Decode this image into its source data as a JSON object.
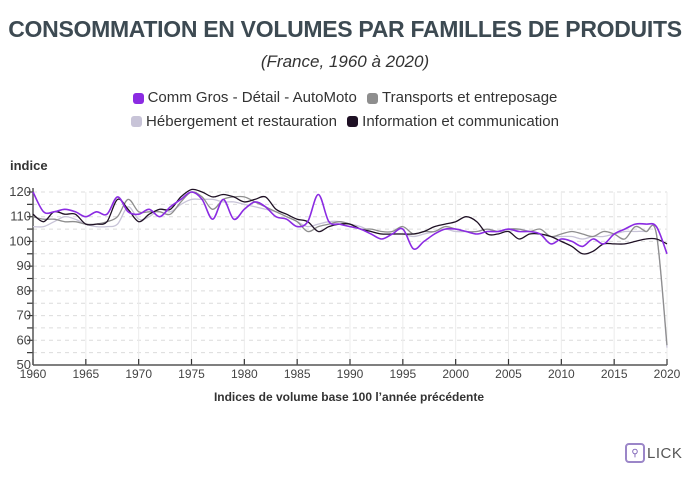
{
  "chart_data": {
    "type": "line",
    "title": "CONSOMMATION EN VOLUMES PAR FAMILLES DE PRODUITS",
    "subtitle": "(France, 1960 à 2020)",
    "ylabel": "indice",
    "xlabel": "Indices de volume base 100 l’année précédente",
    "ylim": [
      50,
      120
    ],
    "xlim": [
      1960,
      2020
    ],
    "yticks": [
      50,
      60,
      70,
      80,
      90,
      100,
      110,
      120
    ],
    "xticks": [
      1960,
      1965,
      1970,
      1975,
      1980,
      1985,
      1990,
      1995,
      2000,
      2005,
      2010,
      2015,
      2020
    ],
    "grid": true,
    "legend_position": "top-center",
    "x": [
      1960,
      1961,
      1962,
      1963,
      1964,
      1965,
      1966,
      1967,
      1968,
      1969,
      1970,
      1971,
      1972,
      1973,
      1974,
      1975,
      1976,
      1977,
      1978,
      1979,
      1980,
      1981,
      1982,
      1983,
      1984,
      1985,
      1986,
      1987,
      1988,
      1989,
      1990,
      1991,
      1992,
      1993,
      1994,
      1995,
      1996,
      1997,
      1998,
      1999,
      2000,
      2001,
      2002,
      2003,
      2004,
      2005,
      2006,
      2007,
      2008,
      2009,
      2010,
      2011,
      2012,
      2013,
      2014,
      2015,
      2016,
      2017,
      2018,
      2019,
      2020
    ],
    "series": [
      {
        "name": "Comm Gros - Détail - AutoMoto",
        "color": "#8b2be2",
        "values": [
          120,
          112,
          112,
          113,
          112,
          110,
          112,
          111,
          118,
          112,
          111,
          113,
          110,
          114,
          117,
          120,
          117,
          109,
          117,
          109,
          113,
          116,
          114,
          110,
          109,
          106,
          108,
          119,
          108,
          107,
          106,
          105,
          103,
          101,
          103,
          105,
          97,
          100,
          103,
          105,
          105,
          104,
          103,
          104,
          104,
          105,
          104,
          104,
          103,
          99,
          101,
          100,
          98,
          101,
          99,
          103,
          105,
          107,
          107,
          106,
          95
        ]
      },
      {
        "name": "Transports et entreposage",
        "color": "#8e8e8e",
        "values": [
          110,
          109,
          109,
          108,
          108,
          107,
          107,
          108,
          110,
          117,
          112,
          112,
          112,
          111,
          116,
          120,
          118,
          113,
          117,
          118,
          118,
          116,
          114,
          112,
          110,
          108,
          104,
          106,
          107,
          108,
          107,
          105,
          105,
          104,
          104,
          106,
          103,
          104,
          104,
          106,
          105,
          104,
          104,
          105,
          104,
          105,
          105,
          104,
          105,
          102,
          103,
          104,
          103,
          102,
          104,
          103,
          101,
          106,
          104,
          103,
          58
        ]
      },
      {
        "name": "Hébergement et restauration",
        "color": "#c8c4d8",
        "values": [
          106,
          106,
          108,
          110,
          109,
          107,
          106,
          106,
          107,
          114,
          109,
          110,
          113,
          112,
          115,
          117,
          117,
          117,
          116,
          116,
          115,
          114,
          113,
          112,
          110,
          108,
          106,
          107,
          108,
          108,
          107,
          106,
          104,
          103,
          103,
          103,
          102,
          103,
          104,
          105,
          104,
          104,
          104,
          105,
          104,
          104,
          105,
          104,
          103,
          102,
          102,
          102,
          101,
          102,
          102,
          103,
          104,
          104,
          104,
          103,
          57
        ]
      },
      {
        "name": "Information et communication",
        "color": "#1e1024",
        "values": [
          111,
          108,
          112,
          111,
          111,
          107,
          107,
          108,
          117,
          113,
          108,
          111,
          113,
          113,
          118,
          121,
          120,
          118,
          119,
          118,
          116,
          117,
          118,
          113,
          111,
          109,
          108,
          104,
          106,
          107,
          107,
          105,
          104,
          103,
          103,
          103,
          103,
          104,
          106,
          107,
          108,
          110,
          108,
          103,
          103,
          104,
          101,
          103,
          103,
          102,
          100,
          98,
          95,
          96,
          99,
          99,
          99,
          100,
          101,
          101,
          99
        ]
      }
    ]
  },
  "logo": {
    "text": "LICK",
    "icon": "magnifier-icon"
  }
}
